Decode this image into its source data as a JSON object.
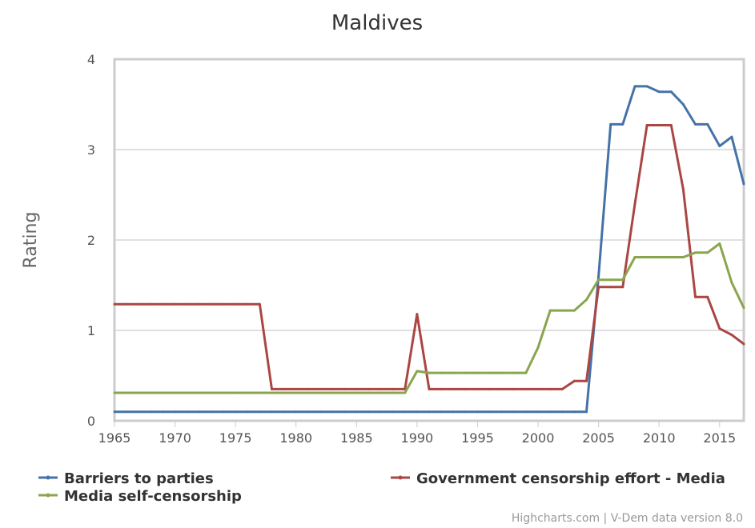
{
  "chart_data": {
    "type": "line",
    "title": "Maldives",
    "xlabel": "",
    "ylabel": "Rating",
    "xlim": [
      1965,
      2017
    ],
    "ylim": [
      0,
      4
    ],
    "x_ticks": [
      "1965",
      "1970",
      "1975",
      "1980",
      "1985",
      "1990",
      "1995",
      "2000",
      "2005",
      "2010",
      "2015"
    ],
    "y_ticks": [
      "0",
      "1",
      "2",
      "3",
      "4"
    ],
    "grid": true,
    "legend_position": "bottom",
    "x": [
      1965,
      1966,
      1967,
      1968,
      1969,
      1970,
      1971,
      1972,
      1973,
      1974,
      1975,
      1976,
      1977,
      1978,
      1979,
      1980,
      1981,
      1982,
      1983,
      1984,
      1985,
      1986,
      1987,
      1988,
      1989,
      1990,
      1991,
      1992,
      1993,
      1994,
      1995,
      1996,
      1997,
      1998,
      1999,
      2000,
      2001,
      2002,
      2003,
      2004,
      2005,
      2006,
      2007,
      2008,
      2009,
      2010,
      2011,
      2012,
      2013,
      2014,
      2015,
      2016,
      2017
    ],
    "series": [
      {
        "name": "Barriers to parties",
        "color": "#4572a7",
        "values": [
          0.1,
          0.1,
          0.1,
          0.1,
          0.1,
          0.1,
          0.1,
          0.1,
          0.1,
          0.1,
          0.1,
          0.1,
          0.1,
          0.1,
          0.1,
          0.1,
          0.1,
          0.1,
          0.1,
          0.1,
          0.1,
          0.1,
          0.1,
          0.1,
          0.1,
          0.1,
          0.1,
          0.1,
          0.1,
          0.1,
          0.1,
          0.1,
          0.1,
          0.1,
          0.1,
          0.1,
          0.1,
          0.1,
          0.1,
          0.1,
          1.6,
          3.28,
          3.28,
          3.7,
          3.7,
          3.64,
          3.64,
          3.5,
          3.28,
          3.28,
          3.04,
          3.14,
          2.62
        ]
      },
      {
        "name": "Government censorship effort - Media",
        "color": "#aa4643",
        "values": [
          1.29,
          1.29,
          1.29,
          1.29,
          1.29,
          1.29,
          1.29,
          1.29,
          1.29,
          1.29,
          1.29,
          1.29,
          1.29,
          0.35,
          0.35,
          0.35,
          0.35,
          0.35,
          0.35,
          0.35,
          0.35,
          0.35,
          0.35,
          0.35,
          0.35,
          1.18,
          0.35,
          0.35,
          0.35,
          0.35,
          0.35,
          0.35,
          0.35,
          0.35,
          0.35,
          0.35,
          0.35,
          0.35,
          0.44,
          0.44,
          1.48,
          1.48,
          1.48,
          2.4,
          3.27,
          3.27,
          3.27,
          2.56,
          1.37,
          1.37,
          1.02,
          0.95,
          0.85
        ]
      },
      {
        "name": "Media self-censorship",
        "color": "#89a54e",
        "values": [
          0.31,
          0.31,
          0.31,
          0.31,
          0.31,
          0.31,
          0.31,
          0.31,
          0.31,
          0.31,
          0.31,
          0.31,
          0.31,
          0.31,
          0.31,
          0.31,
          0.31,
          0.31,
          0.31,
          0.31,
          0.31,
          0.31,
          0.31,
          0.31,
          0.31,
          0.55,
          0.53,
          0.53,
          0.53,
          0.53,
          0.53,
          0.53,
          0.53,
          0.53,
          0.53,
          0.81,
          1.22,
          1.22,
          1.22,
          1.34,
          1.56,
          1.56,
          1.56,
          1.81,
          1.81,
          1.81,
          1.81,
          1.81,
          1.86,
          1.86,
          1.96,
          1.53,
          1.25
        ]
      }
    ]
  },
  "credits": "Highcharts.com | V-Dem data version 8.0"
}
